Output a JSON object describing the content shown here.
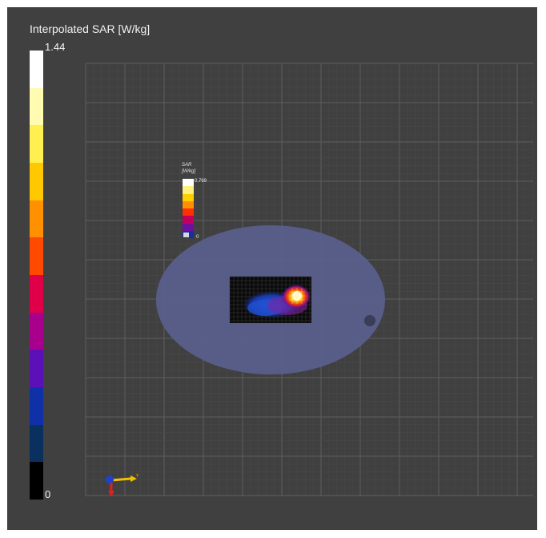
{
  "colorbar": {
    "title": "Interpolated SAR [W/kg]",
    "max_label": "1.44",
    "min_label": "0",
    "colors_top_to_bottom": [
      "#ffffff",
      "#fffbb0",
      "#fff050",
      "#ffc800",
      "#ff9000",
      "#ff4a00",
      "#e0004a",
      "#a8008c",
      "#5c10b8",
      "#1030a8",
      "#0a3060",
      "#000000"
    ]
  },
  "mini_colorbar": {
    "title_line1": "SAR",
    "title_line2": "[W/kg]",
    "max_label": "0.769",
    "min_label": "0",
    "colors_top_to_bottom": [
      "#ffffff",
      "#fff080",
      "#ffd000",
      "#ff9000",
      "#ff3000",
      "#c00060",
      "#7010a0",
      "#1030b0"
    ]
  },
  "scene": {
    "background_color": "#404040",
    "grid_color": "#555555",
    "phantom_color": "#5a5f8c",
    "sar_map_hotspot": "#ffffff"
  },
  "axis_triad": {
    "y_axis_label": "Y",
    "colors": {
      "x": "#e02020",
      "y": "#f0c000",
      "z": "#2040d0"
    }
  }
}
